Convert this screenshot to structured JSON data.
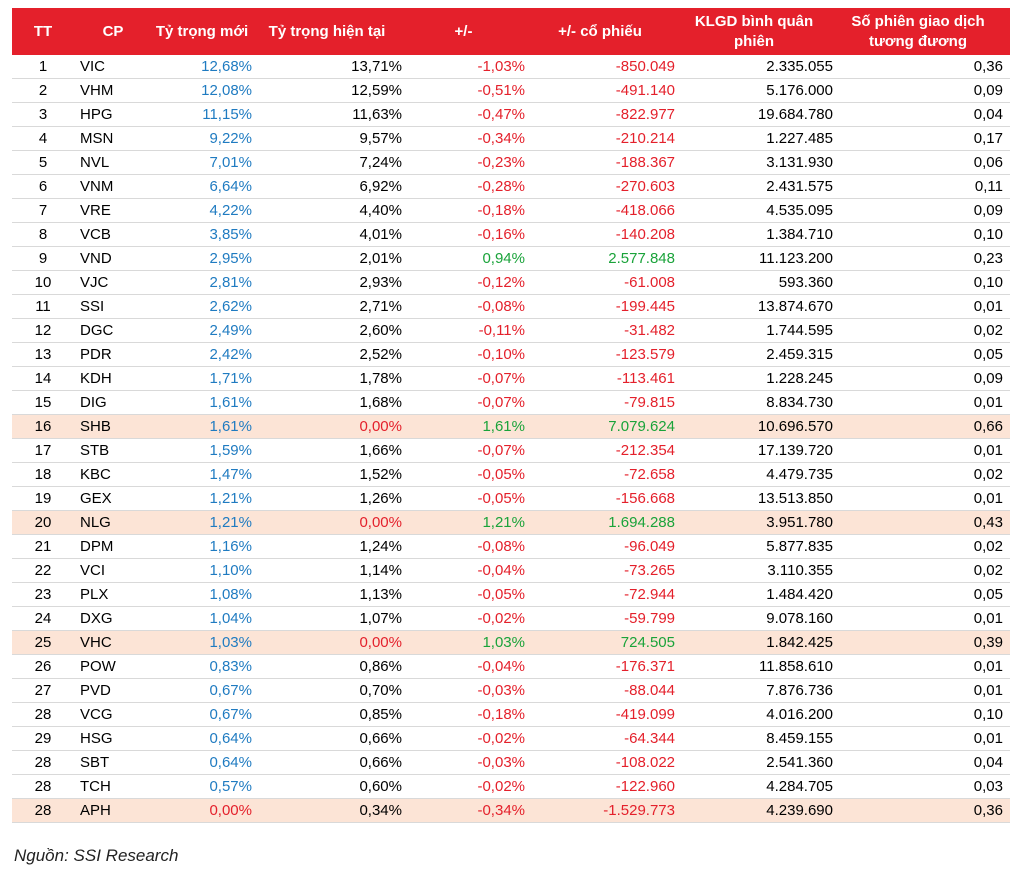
{
  "colors": {
    "header_bg": "#e4202b",
    "highlight_row": "#fce4d6",
    "blue": "#1f7bc1",
    "red": "#e4202b",
    "green": "#1aa33a"
  },
  "headers": [
    "TT",
    "CP",
    "Tỷ trọng mới",
    "Tỷ trọng hiện tại",
    "+/-",
    "+/- cổ phiếu",
    "KLGD bình quân phiên",
    "Số phiên giao dịch tương đương"
  ],
  "rows": [
    {
      "tt": "1",
      "cp": "VIC",
      "new": "12,68%",
      "cur": "13,71%",
      "chg": "-1,03%",
      "shares": "-850.049",
      "vol": "2.335.055",
      "sessions": "0,36",
      "hl": false
    },
    {
      "tt": "2",
      "cp": "VHM",
      "new": "12,08%",
      "cur": "12,59%",
      "chg": "-0,51%",
      "shares": "-491.140",
      "vol": "5.176.000",
      "sessions": "0,09",
      "hl": false
    },
    {
      "tt": "3",
      "cp": "HPG",
      "new": "11,15%",
      "cur": "11,63%",
      "chg": "-0,47%",
      "shares": "-822.977",
      "vol": "19.684.780",
      "sessions": "0,04",
      "hl": false
    },
    {
      "tt": "4",
      "cp": "MSN",
      "new": "9,22%",
      "cur": "9,57%",
      "chg": "-0,34%",
      "shares": "-210.214",
      "vol": "1.227.485",
      "sessions": "0,17",
      "hl": false
    },
    {
      "tt": "5",
      "cp": "NVL",
      "new": "7,01%",
      "cur": "7,24%",
      "chg": "-0,23%",
      "shares": "-188.367",
      "vol": "3.131.930",
      "sessions": "0,06",
      "hl": false
    },
    {
      "tt": "6",
      "cp": "VNM",
      "new": "6,64%",
      "cur": "6,92%",
      "chg": "-0,28%",
      "shares": "-270.603",
      "vol": "2.431.575",
      "sessions": "0,11",
      "hl": false
    },
    {
      "tt": "7",
      "cp": "VRE",
      "new": "4,22%",
      "cur": "4,40%",
      "chg": "-0,18%",
      "shares": "-418.066",
      "vol": "4.535.095",
      "sessions": "0,09",
      "hl": false
    },
    {
      "tt": "8",
      "cp": "VCB",
      "new": "3,85%",
      "cur": "4,01%",
      "chg": "-0,16%",
      "shares": "-140.208",
      "vol": "1.384.710",
      "sessions": "0,10",
      "hl": false
    },
    {
      "tt": "9",
      "cp": "VND",
      "new": "2,95%",
      "cur": "2,01%",
      "chg": "0,94%",
      "shares": "2.577.848",
      "vol": "11.123.200",
      "sessions": "0,23",
      "hl": false
    },
    {
      "tt": "10",
      "cp": "VJC",
      "new": "2,81%",
      "cur": "2,93%",
      "chg": "-0,12%",
      "shares": "-61.008",
      "vol": "593.360",
      "sessions": "0,10",
      "hl": false
    },
    {
      "tt": "11",
      "cp": "SSI",
      "new": "2,62%",
      "cur": "2,71%",
      "chg": "-0,08%",
      "shares": "-199.445",
      "vol": "13.874.670",
      "sessions": "0,01",
      "hl": false
    },
    {
      "tt": "12",
      "cp": "DGC",
      "new": "2,49%",
      "cur": "2,60%",
      "chg": "-0,11%",
      "shares": "-31.482",
      "vol": "1.744.595",
      "sessions": "0,02",
      "hl": false
    },
    {
      "tt": "13",
      "cp": "PDR",
      "new": "2,42%",
      "cur": "2,52%",
      "chg": "-0,10%",
      "shares": "-123.579",
      "vol": "2.459.315",
      "sessions": "0,05",
      "hl": false
    },
    {
      "tt": "14",
      "cp": "KDH",
      "new": "1,71%",
      "cur": "1,78%",
      "chg": "-0,07%",
      "shares": "-113.461",
      "vol": "1.228.245",
      "sessions": "0,09",
      "hl": false
    },
    {
      "tt": "15",
      "cp": "DIG",
      "new": "1,61%",
      "cur": "1,68%",
      "chg": "-0,07%",
      "shares": "-79.815",
      "vol": "8.834.730",
      "sessions": "0,01",
      "hl": false
    },
    {
      "tt": "16",
      "cp": "SHB",
      "new": "1,61%",
      "cur": "0,00%",
      "chg": "1,61%",
      "shares": "7.079.624",
      "vol": "10.696.570",
      "sessions": "0,66",
      "hl": true
    },
    {
      "tt": "17",
      "cp": "STB",
      "new": "1,59%",
      "cur": "1,66%",
      "chg": "-0,07%",
      "shares": "-212.354",
      "vol": "17.139.720",
      "sessions": "0,01",
      "hl": false
    },
    {
      "tt": "18",
      "cp": "KBC",
      "new": "1,47%",
      "cur": "1,52%",
      "chg": "-0,05%",
      "shares": "-72.658",
      "vol": "4.479.735",
      "sessions": "0,02",
      "hl": false
    },
    {
      "tt": "19",
      "cp": "GEX",
      "new": "1,21%",
      "cur": "1,26%",
      "chg": "-0,05%",
      "shares": "-156.668",
      "vol": "13.513.850",
      "sessions": "0,01",
      "hl": false
    },
    {
      "tt": "20",
      "cp": "NLG",
      "new": "1,21%",
      "cur": "0,00%",
      "chg": "1,21%",
      "shares": "1.694.288",
      "vol": "3.951.780",
      "sessions": "0,43",
      "hl": true
    },
    {
      "tt": "21",
      "cp": "DPM",
      "new": "1,16%",
      "cur": "1,24%",
      "chg": "-0,08%",
      "shares": "-96.049",
      "vol": "5.877.835",
      "sessions": "0,02",
      "hl": false
    },
    {
      "tt": "22",
      "cp": "VCI",
      "new": "1,10%",
      "cur": "1,14%",
      "chg": "-0,04%",
      "shares": "-73.265",
      "vol": "3.110.355",
      "sessions": "0,02",
      "hl": false
    },
    {
      "tt": "23",
      "cp": "PLX",
      "new": "1,08%",
      "cur": "1,13%",
      "chg": "-0,05%",
      "shares": "-72.944",
      "vol": "1.484.420",
      "sessions": "0,05",
      "hl": false
    },
    {
      "tt": "24",
      "cp": "DXG",
      "new": "1,04%",
      "cur": "1,07%",
      "chg": "-0,02%",
      "shares": "-59.799",
      "vol": "9.078.160",
      "sessions": "0,01",
      "hl": false
    },
    {
      "tt": "25",
      "cp": "VHC",
      "new": "1,03%",
      "cur": "0,00%",
      "chg": "1,03%",
      "shares": "724.505",
      "vol": "1.842.425",
      "sessions": "0,39",
      "hl": true
    },
    {
      "tt": "26",
      "cp": "POW",
      "new": "0,83%",
      "cur": "0,86%",
      "chg": "-0,04%",
      "shares": "-176.371",
      "vol": "11.858.610",
      "sessions": "0,01",
      "hl": false
    },
    {
      "tt": "27",
      "cp": "PVD",
      "new": "0,67%",
      "cur": "0,70%",
      "chg": "-0,03%",
      "shares": "-88.044",
      "vol": "7.876.736",
      "sessions": "0,01",
      "hl": false
    },
    {
      "tt": "28",
      "cp": "VCG",
      "new": "0,67%",
      "cur": "0,85%",
      "chg": "-0,18%",
      "shares": "-419.099",
      "vol": "4.016.200",
      "sessions": "0,10",
      "hl": false
    },
    {
      "tt": "29",
      "cp": "HSG",
      "new": "0,64%",
      "cur": "0,66%",
      "chg": "-0,02%",
      "shares": "-64.344",
      "vol": "8.459.155",
      "sessions": "0,01",
      "hl": false
    },
    {
      "tt": "28",
      "cp": "SBT",
      "new": "0,64%",
      "cur": "0,66%",
      "chg": "-0,03%",
      "shares": "-108.022",
      "vol": "2.541.360",
      "sessions": "0,04",
      "hl": false
    },
    {
      "tt": "28",
      "cp": "TCH",
      "new": "0,57%",
      "cur": "0,60%",
      "chg": "-0,02%",
      "shares": "-122.960",
      "vol": "4.284.705",
      "sessions": "0,03",
      "hl": false
    },
    {
      "tt": "28",
      "cp": "APH",
      "new": "0,00%",
      "cur": "0,34%",
      "chg": "-0,34%",
      "shares": "-1.529.773",
      "vol": "4.239.690",
      "sessions": "0,36",
      "hl": true
    }
  ],
  "source": "Nguồn: SSI Research"
}
